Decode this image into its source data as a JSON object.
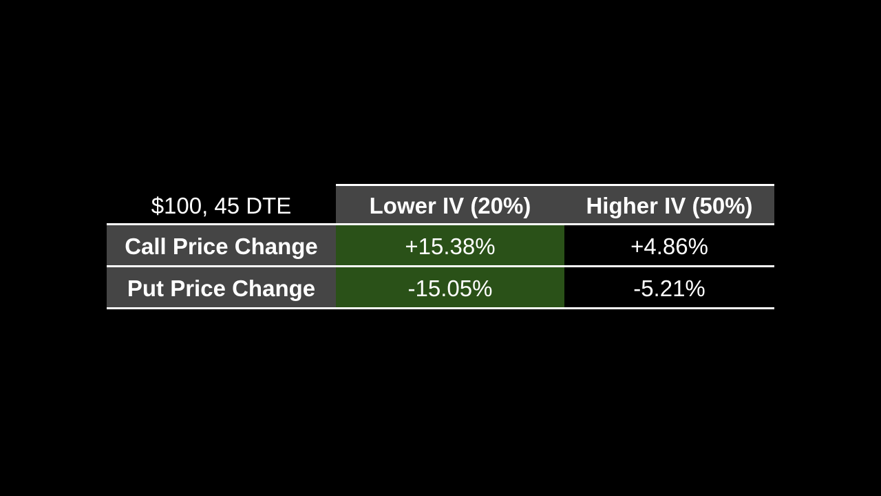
{
  "table": {
    "corner_label": "$100, 45 DTE",
    "columns": [
      "Lower IV (20%)",
      "Higher IV (50%)"
    ],
    "rows": [
      {
        "label": "Call Price Change",
        "values": [
          "+15.38%",
          "+4.86%"
        ]
      },
      {
        "label": "Put Price Change",
        "values": [
          "-15.05%",
          "-5.21%"
        ]
      }
    ],
    "colors": {
      "background": "#000000",
      "header_fill": "#454545",
      "row_label_fill": "#454545",
      "highlight_fill": "#2a5118",
      "rule_color": "#ffffff"
    }
  }
}
